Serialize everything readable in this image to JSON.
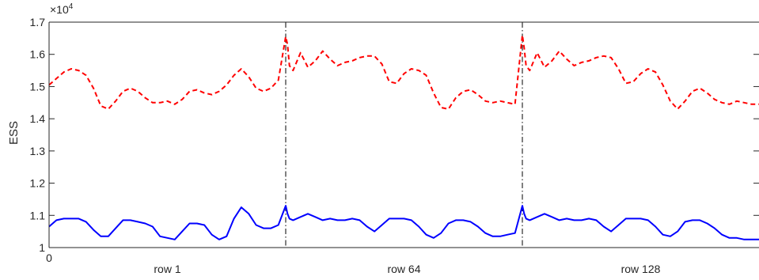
{
  "chart_data": {
    "type": "line",
    "ylabel": "ESS",
    "y_exponent_label": "×10",
    "y_exponent_power": "4",
    "ylim": [
      10000,
      17000
    ],
    "yticks": [
      {
        "value": 10000,
        "label": "1"
      },
      {
        "value": 11000,
        "label": "1.1"
      },
      {
        "value": 12000,
        "label": "1.2"
      },
      {
        "value": 13000,
        "label": "1.3"
      },
      {
        "value": 14000,
        "label": "1.4"
      },
      {
        "value": 15000,
        "label": "1.5"
      },
      {
        "value": 16000,
        "label": "1.6"
      },
      {
        "value": 17000,
        "label": "1.7"
      }
    ],
    "x_origin_label": "0",
    "xlim": [
      0,
      192
    ],
    "sections": [
      {
        "label": "row 1",
        "center": 32
      },
      {
        "label": "row 64",
        "center": 96
      },
      {
        "label": "row 128",
        "center": 160
      }
    ],
    "dividers": [
      64,
      128
    ],
    "series": [
      {
        "color": "#ff0000",
        "style": "dashed",
        "x": [
          0,
          2,
          4,
          6,
          8,
          10,
          12,
          14,
          16,
          18,
          20,
          22,
          24,
          26,
          28,
          30,
          32,
          34,
          36,
          38,
          40,
          42,
          44,
          46,
          48,
          50,
          52,
          54,
          56,
          58,
          60,
          62,
          64,
          64.5,
          65,
          66,
          68,
          70,
          72,
          74,
          76,
          78,
          80,
          82,
          84,
          86,
          88,
          90,
          92,
          94,
          96,
          98,
          100,
          102,
          104,
          106,
          108,
          110,
          112,
          114,
          116,
          118,
          120,
          122,
          124,
          126,
          128,
          128.5,
          129,
          130,
          132,
          134,
          136,
          138,
          140,
          142,
          144,
          146,
          148,
          150,
          152,
          154,
          156,
          158,
          160,
          162,
          164,
          166,
          168,
          170,
          172,
          174,
          176,
          178,
          180,
          182,
          184,
          186,
          188,
          190,
          192
        ],
        "y": [
          15050,
          15250,
          15450,
          15550,
          15500,
          15350,
          14950,
          14400,
          14300,
          14550,
          14850,
          14950,
          14850,
          14650,
          14500,
          14500,
          14550,
          14450,
          14600,
          14850,
          14900,
          14800,
          14750,
          14850,
          15050,
          15350,
          15550,
          15300,
          14950,
          14850,
          14950,
          15200,
          16550,
          16300,
          15650,
          15500,
          16050,
          15600,
          15800,
          16100,
          15850,
          15650,
          15750,
          15800,
          15900,
          15950,
          15950,
          15700,
          15150,
          15100,
          15400,
          15550,
          15500,
          15350,
          14800,
          14350,
          14300,
          14650,
          14850,
          14900,
          14750,
          14550,
          14500,
          14550,
          14500,
          14450,
          16600,
          16200,
          15650,
          15500,
          16050,
          15600,
          15800,
          16100,
          15850,
          15650,
          15750,
          15800,
          15900,
          15950,
          15900,
          15550,
          15100,
          15150,
          15400,
          15550,
          15450,
          15050,
          14550,
          14300,
          14550,
          14850,
          14950,
          14800,
          14600,
          14500,
          14450,
          14550,
          14500,
          14450,
          14450
        ]
      },
      {
        "color": "#0000ff",
        "style": "solid",
        "x": [
          0,
          2,
          4,
          6,
          8,
          10,
          12,
          14,
          16,
          18,
          20,
          22,
          24,
          26,
          28,
          30,
          32,
          34,
          36,
          38,
          40,
          42,
          44,
          46,
          48,
          50,
          52,
          54,
          56,
          58,
          60,
          62,
          64,
          64.5,
          65,
          66,
          68,
          70,
          72,
          74,
          76,
          78,
          80,
          82,
          84,
          86,
          88,
          90,
          92,
          94,
          96,
          98,
          100,
          102,
          104,
          106,
          108,
          110,
          112,
          114,
          116,
          118,
          120,
          122,
          124,
          126,
          128,
          128.5,
          129,
          130,
          132,
          134,
          136,
          138,
          140,
          142,
          144,
          146,
          148,
          150,
          152,
          154,
          156,
          158,
          160,
          162,
          164,
          166,
          168,
          170,
          172,
          174,
          176,
          178,
          180,
          182,
          184,
          186,
          188,
          190,
          192
        ],
        "y": [
          10650,
          10850,
          10900,
          10900,
          10900,
          10800,
          10550,
          10350,
          10350,
          10600,
          10850,
          10850,
          10800,
          10750,
          10650,
          10350,
          10300,
          10250,
          10500,
          10750,
          10750,
          10700,
          10400,
          10250,
          10350,
          10900,
          11250,
          11050,
          10700,
          10600,
          10600,
          10700,
          11300,
          11050,
          10900,
          10850,
          10950,
          11050,
          10950,
          10850,
          10900,
          10850,
          10850,
          10900,
          10850,
          10650,
          10500,
          10700,
          10900,
          10900,
          10900,
          10850,
          10650,
          10400,
          10300,
          10450,
          10750,
          10850,
          10850,
          10800,
          10650,
          10450,
          10350,
          10350,
          10400,
          10450,
          11300,
          11050,
          10900,
          10850,
          10950,
          11050,
          10950,
          10850,
          10900,
          10850,
          10850,
          10900,
          10850,
          10650,
          10500,
          10700,
          10900,
          10900,
          10900,
          10850,
          10650,
          10400,
          10350,
          10500,
          10800,
          10850,
          10850,
          10750,
          10600,
          10400,
          10300,
          10300,
          10250,
          10250,
          10250
        ]
      }
    ]
  }
}
